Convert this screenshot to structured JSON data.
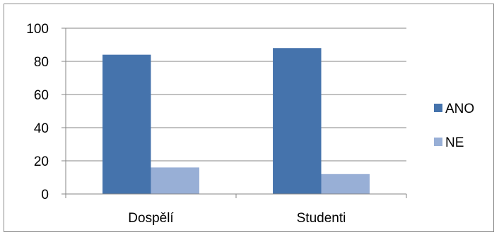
{
  "chart_data": {
    "type": "bar",
    "categories": [
      "Dospělí",
      "Studenti"
    ],
    "series": [
      {
        "name": "ANO",
        "values": [
          84,
          88
        ],
        "color": "#4573AC"
      },
      {
        "name": "NE",
        "values": [
          16,
          12
        ],
        "color": "#98AFD6"
      }
    ],
    "ylim": [
      0,
      100
    ],
    "yticks": [
      0,
      20,
      40,
      60,
      80,
      100
    ],
    "grid": true,
    "legend_position": "right"
  }
}
